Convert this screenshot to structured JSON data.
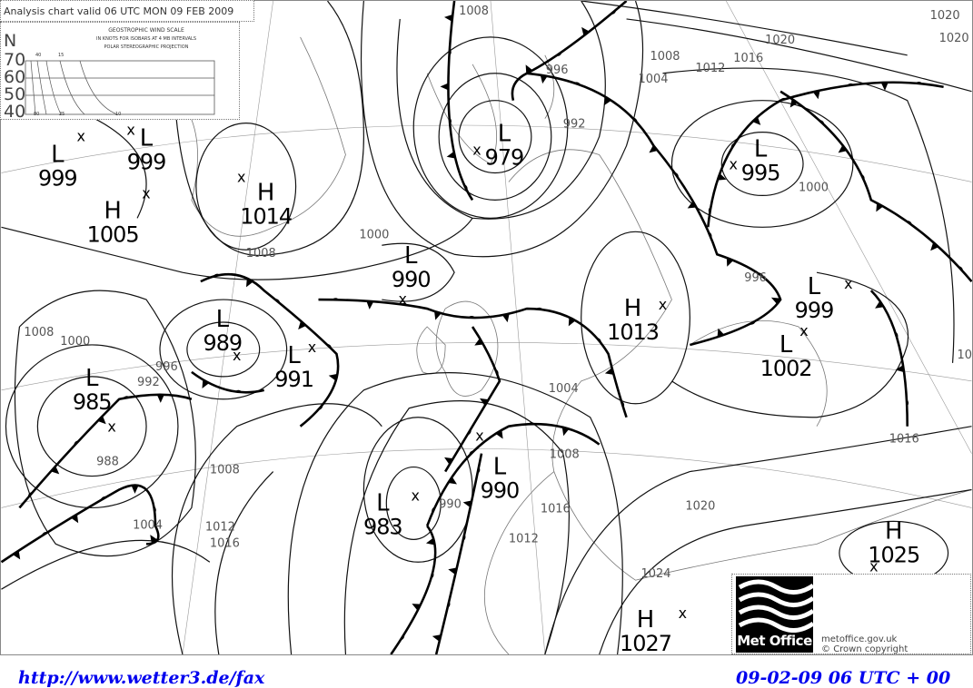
{
  "header": {
    "title": "Analysis chart valid 06 UTC MON 09 FEB 2009",
    "wind_scale": {
      "heading": "GEOSTROPHIC WIND SCALE",
      "line2": "IN KNOTS FOR ISOBARS AT  4 MB INTERVALS",
      "line3": "POLAR STEREOGRAPHIC PROJECTION",
      "lat_unit": "N",
      "latitudes": [
        "70",
        "60",
        "50",
        "40"
      ],
      "top_speeds": [
        "40",
        "15"
      ],
      "bottom_speeds": [
        "80",
        "25",
        "10"
      ]
    }
  },
  "pressure_centres": [
    {
      "type": "L",
      "value": "999"
    },
    {
      "type": "L",
      "value": "999"
    },
    {
      "type": "H",
      "value": "1005"
    },
    {
      "type": "H",
      "value": "1014"
    },
    {
      "type": "L",
      "value": "979"
    },
    {
      "type": "L",
      "value": "995"
    },
    {
      "type": "L",
      "value": "990"
    },
    {
      "type": "L",
      "value": "989"
    },
    {
      "type": "L",
      "value": "991"
    },
    {
      "type": "L",
      "value": "985"
    },
    {
      "type": "H",
      "value": "1013"
    },
    {
      "type": "L",
      "value": "999"
    },
    {
      "type": "L",
      "value": "1002"
    },
    {
      "type": "L",
      "value": "983"
    },
    {
      "type": "L",
      "value": "990"
    },
    {
      "type": "H",
      "value": "1025"
    },
    {
      "type": "H",
      "value": "1027"
    }
  ],
  "isobar_labels": [
    "1008",
    "1020",
    "1016",
    "1012",
    "1008",
    "1004",
    "996",
    "992",
    "1008",
    "1000",
    "1008",
    "1000",
    "996",
    "992",
    "988",
    "1004",
    "1008",
    "1012",
    "1016",
    "1020",
    "1016",
    "1020",
    "1024",
    "1012",
    "1000",
    "996",
    "1008",
    "1016",
    "1012",
    "1004",
    "990",
    "1020"
  ],
  "logo": {
    "name": "Met Office",
    "url_text": "metoffice.gov.uk",
    "copyright": "Crown copyright"
  },
  "footer": {
    "source_link": "http://www.wetter3.de/fax",
    "run_time": "09-02-09 06 UTC + 00"
  },
  "colors": {
    "footer_text": "#0000ee",
    "isobar": "#111111",
    "coast": "#777777"
  }
}
